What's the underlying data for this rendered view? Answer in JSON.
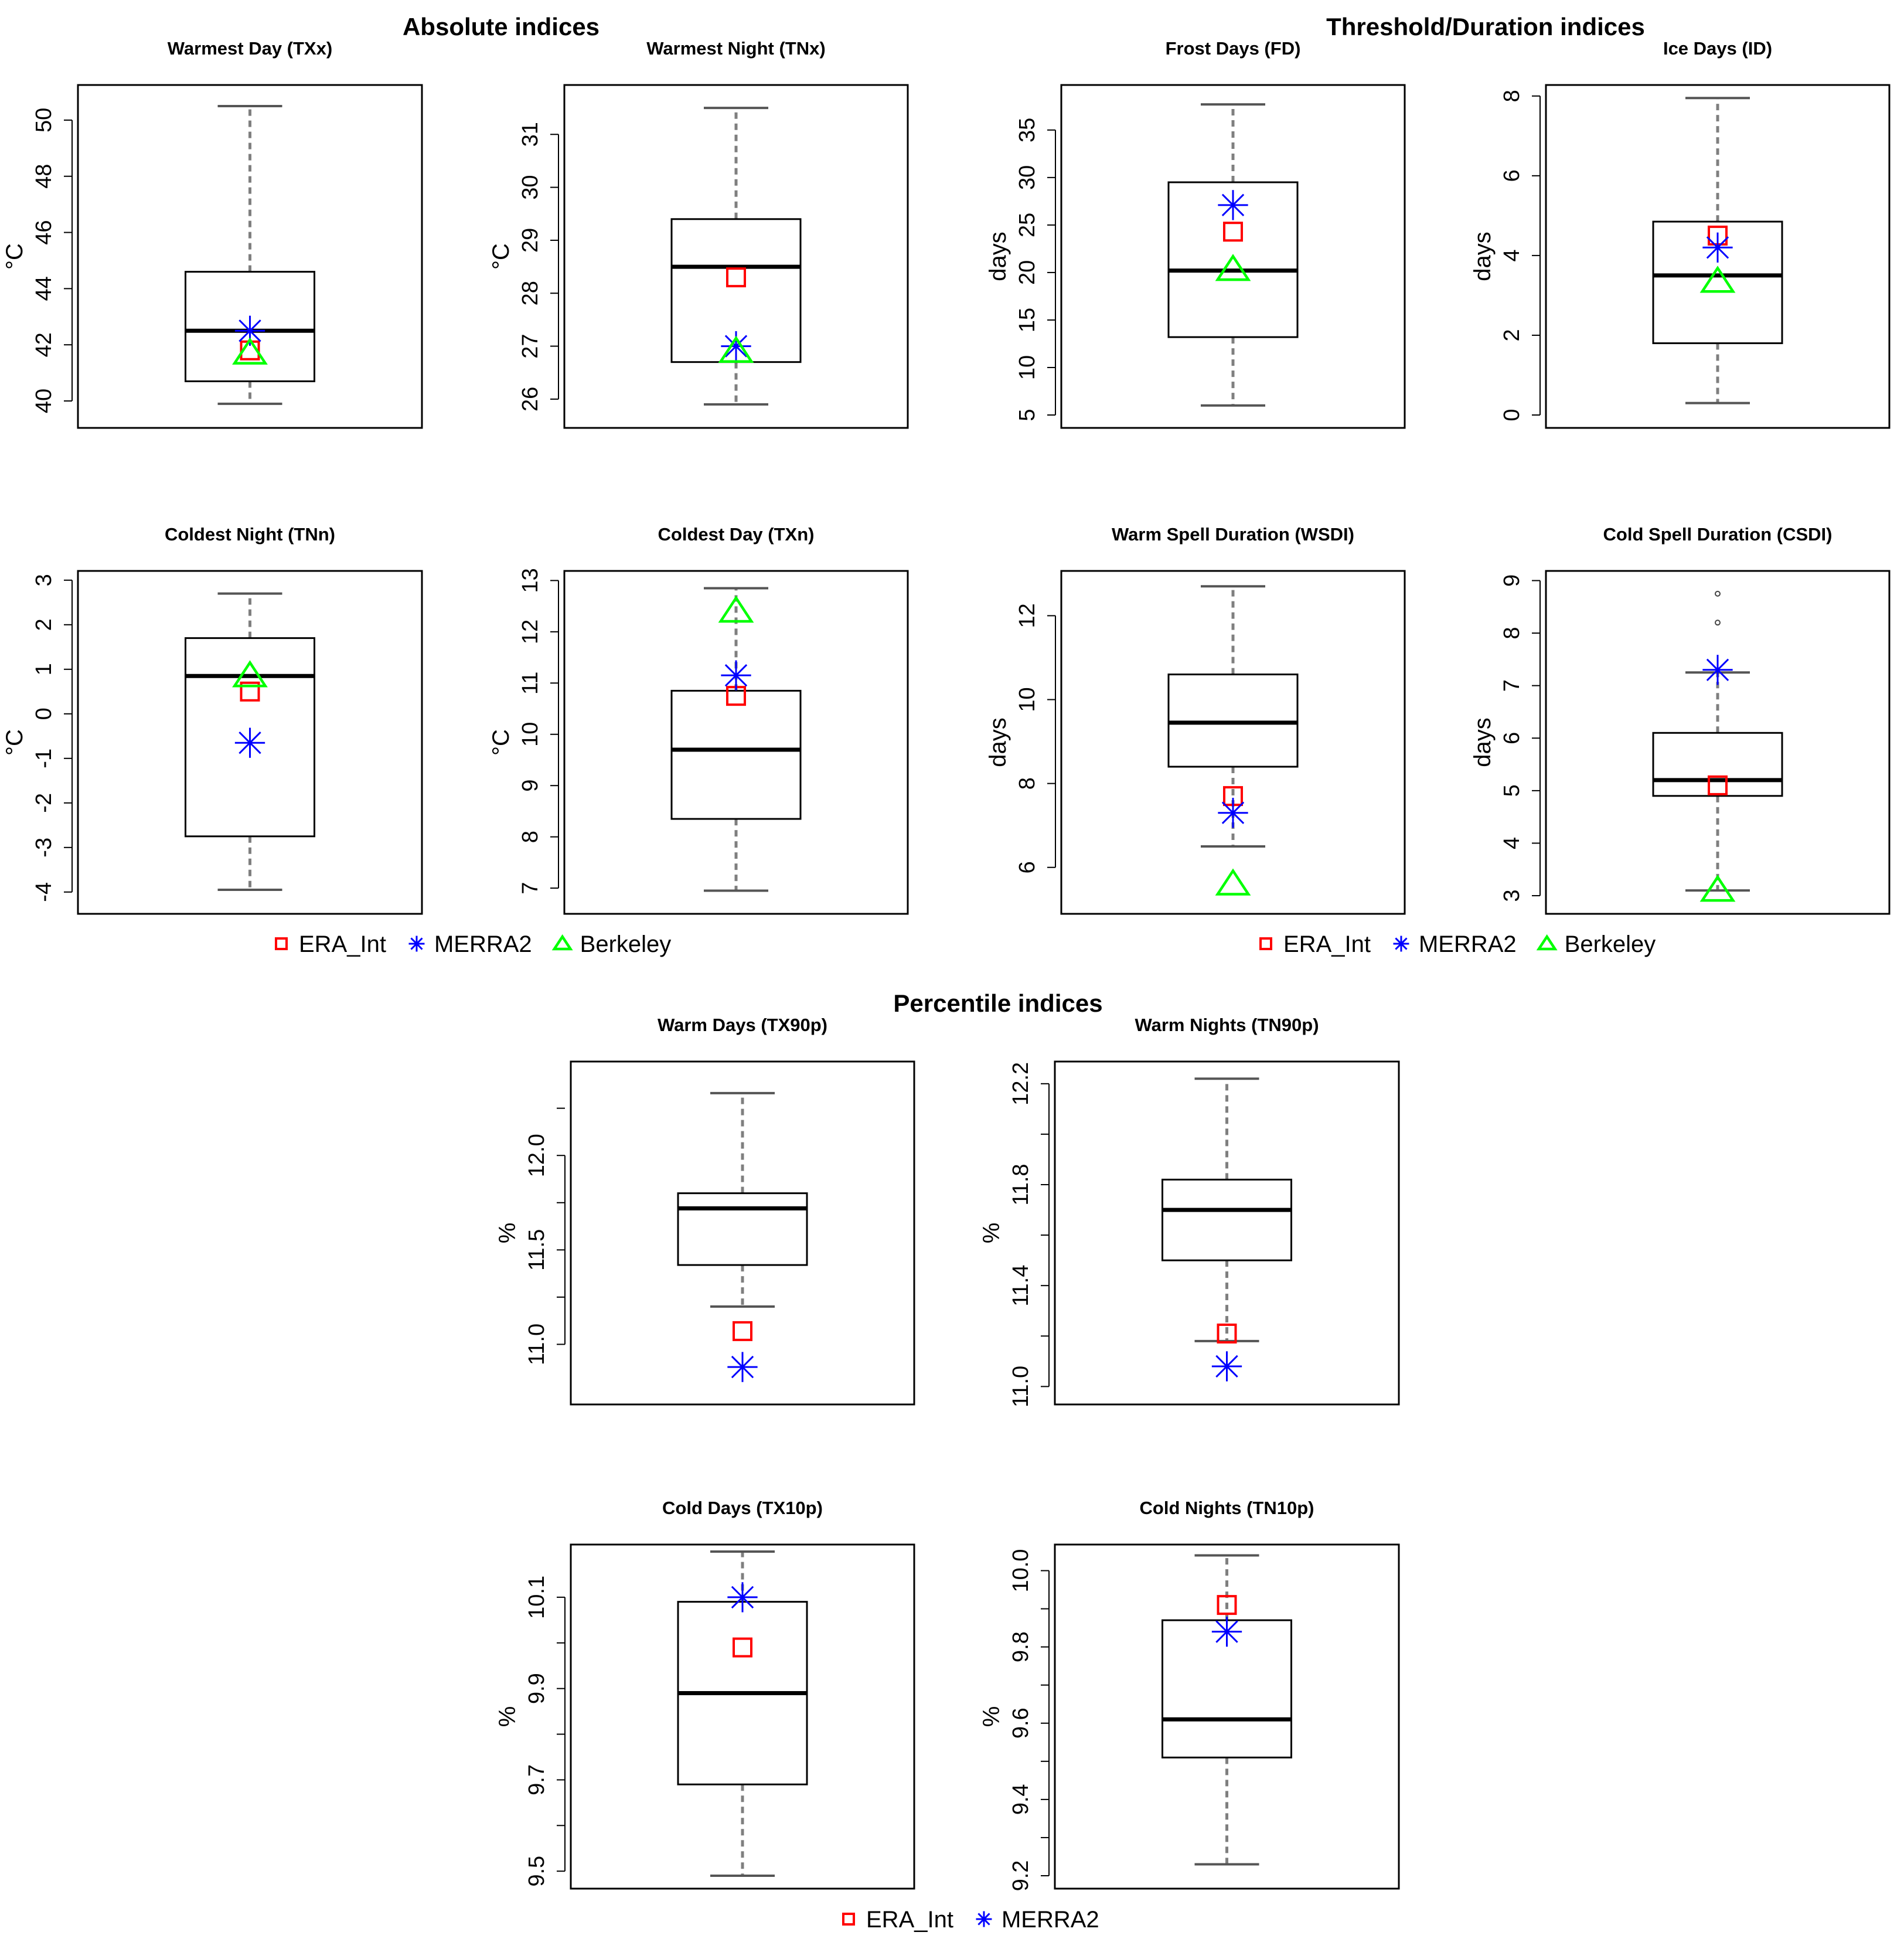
{
  "sections": {
    "absolute": "Absolute indices",
    "threshold": "Threshold/Duration indices",
    "percentile": "Percentile indices"
  },
  "series_style": {
    "ERA_Int": {
      "color": "#ff0000",
      "marker": "square"
    },
    "MERRA2": {
      "color": "#0000ff",
      "marker": "asterisk"
    },
    "Berkeley": {
      "color": "#00ff00",
      "marker": "triangle"
    }
  },
  "legends": [
    [
      "ERA_Int",
      "MERRA2",
      "Berkeley"
    ],
    [
      "ERA_Int",
      "MERRA2",
      "Berkeley"
    ],
    [
      "ERA_Int",
      "MERRA2"
    ]
  ],
  "chart_data": [
    {
      "type": "box",
      "title": "Warmest Day (TXx)",
      "ylabel": "°C",
      "ylim": [
        39.5,
        51
      ],
      "ticks": [
        40,
        42,
        44,
        46,
        48,
        50
      ],
      "ticklabels": [
        "40",
        "42",
        "44",
        "46",
        "48",
        "50"
      ],
      "box": {
        "whisker_low": 39.9,
        "q1": 40.7,
        "median": 42.5,
        "q3": 44.6,
        "whisker_high": 50.5,
        "outliers": []
      },
      "points": {
        "ERA_Int": 41.8,
        "MERRA2": 42.5,
        "Berkeley": 41.7
      }
    },
    {
      "type": "box",
      "title": "Warmest Night (TNx)",
      "ylabel": "°C",
      "ylim": [
        25.7,
        31.8
      ],
      "ticks": [
        26,
        27,
        28,
        29,
        30,
        31
      ],
      "ticklabels": [
        "26",
        "27",
        "28",
        "29",
        "30",
        "31"
      ],
      "box": {
        "whisker_low": 25.9,
        "q1": 26.7,
        "median": 28.5,
        "q3": 29.4,
        "whisker_high": 31.5,
        "outliers": []
      },
      "points": {
        "ERA_Int": 28.3,
        "MERRA2": 27.0,
        "Berkeley": 26.9
      }
    },
    {
      "type": "box",
      "title": "Frost Days (FD)",
      "ylabel": "days",
      "ylim": [
        5,
        39
      ],
      "ticks": [
        5,
        10,
        15,
        20,
        25,
        30,
        35
      ],
      "ticklabels": [
        "5",
        "10",
        "15",
        "20",
        "25",
        "30",
        "35"
      ],
      "box": {
        "whisker_low": 6,
        "q1": 13.2,
        "median": 20.2,
        "q3": 29.5,
        "whisker_high": 37.7,
        "outliers": []
      },
      "points": {
        "ERA_Int": 24.3,
        "MERRA2": 27.1,
        "Berkeley": 20.3
      }
    },
    {
      "type": "box",
      "title": "Ice Days (ID)",
      "ylabel": "days",
      "ylim": [
        0,
        8.1
      ],
      "ticks": [
        0,
        2,
        4,
        6,
        8
      ],
      "ticklabels": [
        "0",
        "2",
        "4",
        "6",
        "8"
      ],
      "box": {
        "whisker_low": 0.3,
        "q1": 1.8,
        "median": 3.5,
        "q3": 4.85,
        "whisker_high": 7.95,
        "outliers": []
      },
      "points": {
        "ERA_Int": 4.5,
        "MERRA2": 4.2,
        "Berkeley": 3.35
      }
    },
    {
      "type": "box",
      "title": "Coldest Night (TNn)",
      "ylabel": "°C",
      "ylim": [
        -4.2,
        3.05
      ],
      "ticks": [
        -4,
        -3,
        -2,
        -1,
        0,
        1,
        2,
        3
      ],
      "ticklabels": [
        "-4",
        "-3",
        "-2",
        "-1",
        "0",
        "1",
        "2",
        "3"
      ],
      "box": {
        "whisker_low": -3.95,
        "q1": -2.75,
        "median": 0.85,
        "q3": 1.7,
        "whisker_high": 2.7,
        "outliers": []
      },
      "points": {
        "ERA_Int": 0.5,
        "MERRA2": -0.65,
        "Berkeley": 0.85
      }
    },
    {
      "type": "box",
      "title": "Coldest Day (TXn)",
      "ylabel": "°C",
      "ylim": [
        6.75,
        13.05
      ],
      "ticks": [
        7,
        8,
        9,
        10,
        11,
        12,
        13
      ],
      "ticklabels": [
        "7",
        "8",
        "9",
        "10",
        "11",
        "12",
        "13"
      ],
      "box": {
        "whisker_low": 6.95,
        "q1": 8.35,
        "median": 9.7,
        "q3": 10.85,
        "whisker_high": 12.85,
        "outliers": []
      },
      "points": {
        "ERA_Int": 10.75,
        "MERRA2": 11.15,
        "Berkeley": 12.4
      }
    },
    {
      "type": "box",
      "title": "Warm Spell Duration (WSDI)",
      "ylabel": "days",
      "ylim": [
        5.2,
        12.9
      ],
      "ticks": [
        6,
        8,
        10,
        12
      ],
      "ticklabels": [
        "6",
        "8",
        "10",
        "12"
      ],
      "box": {
        "whisker_low": 6.5,
        "q1": 8.4,
        "median": 9.45,
        "q3": 10.6,
        "whisker_high": 12.7,
        "outliers": []
      },
      "points": {
        "ERA_Int": 7.7,
        "MERRA2": 7.3,
        "Berkeley": 5.6
      }
    },
    {
      "type": "box",
      "title": "Cold Spell Duration (CSDI)",
      "ylabel": "days",
      "ylim": [
        2.9,
        9.05
      ],
      "ticks": [
        3,
        4,
        5,
        6,
        7,
        8,
        9
      ],
      "ticklabels": [
        "3",
        "4",
        "5",
        "6",
        "7",
        "8",
        "9"
      ],
      "box": {
        "whisker_low": 3.1,
        "q1": 4.9,
        "median": 5.2,
        "q3": 6.1,
        "whisker_high": 7.25,
        "outliers": [
          8.2,
          8.75
        ]
      },
      "points": {
        "ERA_Int": 5.1,
        "MERRA2": 7.3,
        "Berkeley": 3.1
      }
    },
    {
      "type": "box",
      "title": "Warm Days (TX90p)",
      "ylabel": "%",
      "ylim": [
        10.75,
        12.46
      ],
      "ticks": [
        11.0,
        11.5,
        12.0
      ],
      "ticklabels": [
        "11.0",
        "11.5",
        "12.0"
      ],
      "minor_ticks": [
        11.25,
        11.75,
        12.25
      ],
      "box": {
        "whisker_low": 11.2,
        "q1": 11.42,
        "median": 11.72,
        "q3": 11.8,
        "whisker_high": 12.33,
        "outliers": []
      },
      "points": {
        "ERA_Int": 11.07,
        "MERRA2": 10.88
      }
    },
    {
      "type": "box",
      "title": "Warm Nights (TN90p)",
      "ylabel": "%",
      "ylim": [
        10.98,
        12.26
      ],
      "ticks": [
        11.0,
        11.4,
        11.8,
        12.2
      ],
      "ticklabels": [
        "11.0",
        "11.4",
        "11.8",
        "12.2"
      ],
      "minor_ticks": [
        11.2,
        11.6,
        12.0
      ],
      "box": {
        "whisker_low": 11.18,
        "q1": 11.5,
        "median": 11.7,
        "q3": 11.82,
        "whisker_high": 12.22,
        "outliers": []
      },
      "points": {
        "ERA_Int": 11.21,
        "MERRA2": 11.08
      }
    },
    {
      "type": "box",
      "title": "Cold Days (TX10p)",
      "ylabel": "%",
      "ylim": [
        9.49,
        10.2
      ],
      "ticks": [
        9.5,
        9.7,
        9.9,
        10.1
      ],
      "ticklabels": [
        "9.5",
        "9.7",
        "9.9",
        "10.1"
      ],
      "minor_ticks": [
        9.6,
        9.8,
        10.0
      ],
      "box": {
        "whisker_low": 9.49,
        "q1": 9.69,
        "median": 9.89,
        "q3": 10.09,
        "whisker_high": 10.2,
        "outliers": []
      },
      "points": {
        "ERA_Int": 9.99,
        "MERRA2": 10.1
      }
    },
    {
      "type": "box",
      "title": "Cold Nights (TN10p)",
      "ylabel": "%",
      "ylim": [
        9.2,
        10.05
      ],
      "ticks": [
        9.2,
        9.4,
        9.6,
        9.8,
        10.0
      ],
      "ticklabels": [
        "9.2",
        "9.4",
        "9.6",
        "9.8",
        "10.0"
      ],
      "minor_ticks": [
        9.3,
        9.5,
        9.7,
        9.9
      ],
      "box": {
        "whisker_low": 9.23,
        "q1": 9.51,
        "median": 9.61,
        "q3": 9.87,
        "whisker_high": 10.04,
        "outliers": []
      },
      "points": {
        "ERA_Int": 9.91,
        "MERRA2": 9.84
      }
    }
  ]
}
